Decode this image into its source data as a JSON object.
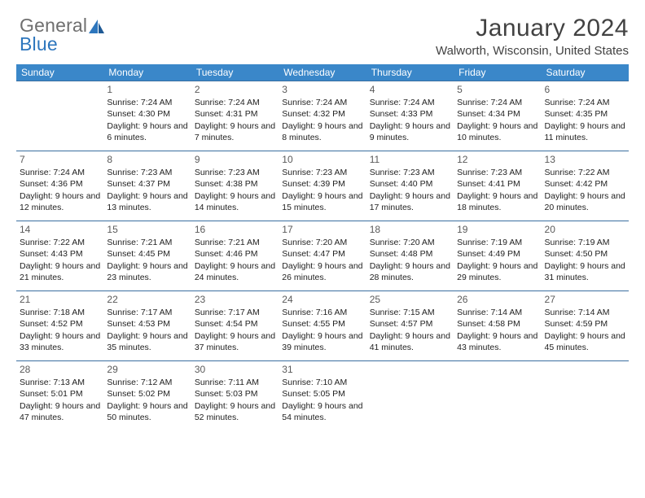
{
  "logo": {
    "text1": "General",
    "text2": "Blue"
  },
  "title": "January 2024",
  "location": "Walworth, Wisconsin, United States",
  "colors": {
    "header_bg": "#3a87c9",
    "header_fg": "#ffffff",
    "rule": "#3a6fa0",
    "logo_gray": "#6f6f6f",
    "logo_blue": "#2d76bd"
  },
  "weekdays": [
    "Sunday",
    "Monday",
    "Tuesday",
    "Wednesday",
    "Thursday",
    "Friday",
    "Saturday"
  ],
  "grid": [
    [
      null,
      {
        "n": "1",
        "sr": "7:24 AM",
        "ss": "4:30 PM",
        "dl": "9 hours and 6 minutes."
      },
      {
        "n": "2",
        "sr": "7:24 AM",
        "ss": "4:31 PM",
        "dl": "9 hours and 7 minutes."
      },
      {
        "n": "3",
        "sr": "7:24 AM",
        "ss": "4:32 PM",
        "dl": "9 hours and 8 minutes."
      },
      {
        "n": "4",
        "sr": "7:24 AM",
        "ss": "4:33 PM",
        "dl": "9 hours and 9 minutes."
      },
      {
        "n": "5",
        "sr": "7:24 AM",
        "ss": "4:34 PM",
        "dl": "9 hours and 10 minutes."
      },
      {
        "n": "6",
        "sr": "7:24 AM",
        "ss": "4:35 PM",
        "dl": "9 hours and 11 minutes."
      }
    ],
    [
      {
        "n": "7",
        "sr": "7:24 AM",
        "ss": "4:36 PM",
        "dl": "9 hours and 12 minutes."
      },
      {
        "n": "8",
        "sr": "7:23 AM",
        "ss": "4:37 PM",
        "dl": "9 hours and 13 minutes."
      },
      {
        "n": "9",
        "sr": "7:23 AM",
        "ss": "4:38 PM",
        "dl": "9 hours and 14 minutes."
      },
      {
        "n": "10",
        "sr": "7:23 AM",
        "ss": "4:39 PM",
        "dl": "9 hours and 15 minutes."
      },
      {
        "n": "11",
        "sr": "7:23 AM",
        "ss": "4:40 PM",
        "dl": "9 hours and 17 minutes."
      },
      {
        "n": "12",
        "sr": "7:23 AM",
        "ss": "4:41 PM",
        "dl": "9 hours and 18 minutes."
      },
      {
        "n": "13",
        "sr": "7:22 AM",
        "ss": "4:42 PM",
        "dl": "9 hours and 20 minutes."
      }
    ],
    [
      {
        "n": "14",
        "sr": "7:22 AM",
        "ss": "4:43 PM",
        "dl": "9 hours and 21 minutes."
      },
      {
        "n": "15",
        "sr": "7:21 AM",
        "ss": "4:45 PM",
        "dl": "9 hours and 23 minutes."
      },
      {
        "n": "16",
        "sr": "7:21 AM",
        "ss": "4:46 PM",
        "dl": "9 hours and 24 minutes."
      },
      {
        "n": "17",
        "sr": "7:20 AM",
        "ss": "4:47 PM",
        "dl": "9 hours and 26 minutes."
      },
      {
        "n": "18",
        "sr": "7:20 AM",
        "ss": "4:48 PM",
        "dl": "9 hours and 28 minutes."
      },
      {
        "n": "19",
        "sr": "7:19 AM",
        "ss": "4:49 PM",
        "dl": "9 hours and 29 minutes."
      },
      {
        "n": "20",
        "sr": "7:19 AM",
        "ss": "4:50 PM",
        "dl": "9 hours and 31 minutes."
      }
    ],
    [
      {
        "n": "21",
        "sr": "7:18 AM",
        "ss": "4:52 PM",
        "dl": "9 hours and 33 minutes."
      },
      {
        "n": "22",
        "sr": "7:17 AM",
        "ss": "4:53 PM",
        "dl": "9 hours and 35 minutes."
      },
      {
        "n": "23",
        "sr": "7:17 AM",
        "ss": "4:54 PM",
        "dl": "9 hours and 37 minutes."
      },
      {
        "n": "24",
        "sr": "7:16 AM",
        "ss": "4:55 PM",
        "dl": "9 hours and 39 minutes."
      },
      {
        "n": "25",
        "sr": "7:15 AM",
        "ss": "4:57 PM",
        "dl": "9 hours and 41 minutes."
      },
      {
        "n": "26",
        "sr": "7:14 AM",
        "ss": "4:58 PM",
        "dl": "9 hours and 43 minutes."
      },
      {
        "n": "27",
        "sr": "7:14 AM",
        "ss": "4:59 PM",
        "dl": "9 hours and 45 minutes."
      }
    ],
    [
      {
        "n": "28",
        "sr": "7:13 AM",
        "ss": "5:01 PM",
        "dl": "9 hours and 47 minutes."
      },
      {
        "n": "29",
        "sr": "7:12 AM",
        "ss": "5:02 PM",
        "dl": "9 hours and 50 minutes."
      },
      {
        "n": "30",
        "sr": "7:11 AM",
        "ss": "5:03 PM",
        "dl": "9 hours and 52 minutes."
      },
      {
        "n": "31",
        "sr": "7:10 AM",
        "ss": "5:05 PM",
        "dl": "9 hours and 54 minutes."
      },
      null,
      null,
      null
    ]
  ],
  "labels": {
    "sunrise": "Sunrise:",
    "sunset": "Sunset:",
    "daylight": "Daylight:"
  }
}
